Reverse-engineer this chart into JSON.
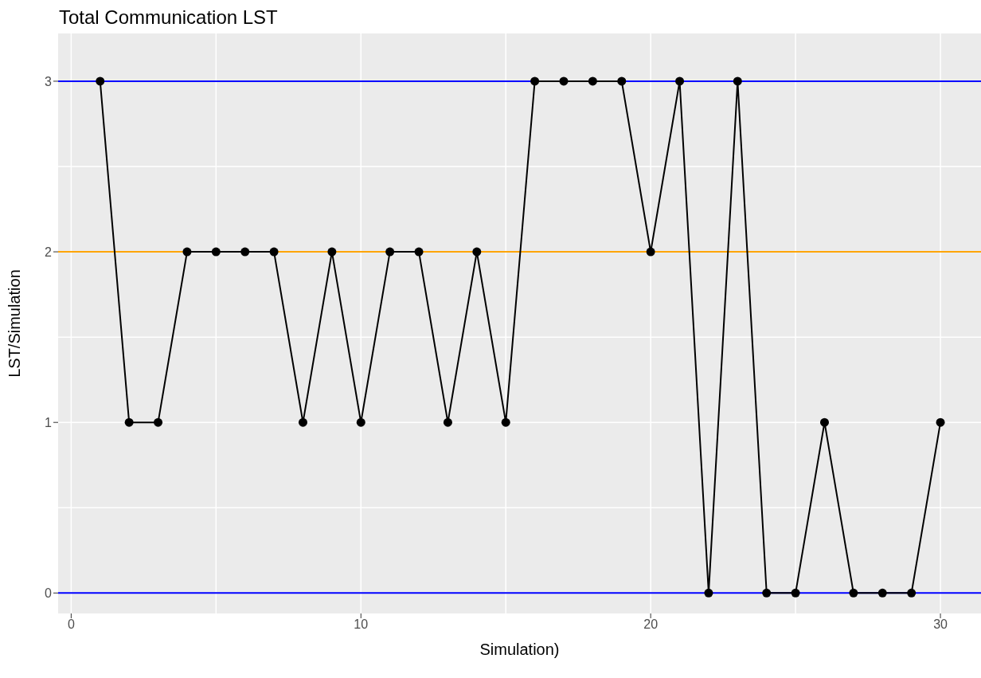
{
  "chart_data": {
    "type": "line",
    "title": "Total Communication LST",
    "xlabel": "Simulation)",
    "ylabel": "LST/Simulation",
    "x": [
      1,
      2,
      3,
      4,
      5,
      6,
      7,
      8,
      9,
      10,
      11,
      12,
      13,
      14,
      15,
      16,
      17,
      18,
      19,
      20,
      21,
      22,
      23,
      24,
      25,
      26,
      27,
      28,
      29,
      30
    ],
    "series": [
      {
        "color": "#000000",
        "values": [
          3,
          1,
          1,
          2,
          2,
          2,
          2,
          1,
          2,
          1,
          2,
          2,
          1,
          2,
          1,
          3,
          3,
          3,
          3,
          2,
          3,
          0,
          3,
          0,
          0,
          1,
          0,
          0,
          0,
          1
        ]
      }
    ],
    "xlim": [
      -0.45,
      31.4
    ],
    "xticks": [
      0,
      10,
      20,
      30
    ],
    "ylim": [
      -0.12,
      3.28
    ],
    "yticks": [
      0,
      1,
      2,
      3
    ],
    "ref_lines": [
      {
        "axis": "y",
        "value": 3,
        "color": "#0000ff"
      },
      {
        "axis": "y",
        "value": 2,
        "color": "#ffa500"
      },
      {
        "axis": "y",
        "value": 0,
        "color": "#0000ff"
      }
    ],
    "grid": true,
    "marker": "circle",
    "line_style": "solid",
    "legend": false
  }
}
